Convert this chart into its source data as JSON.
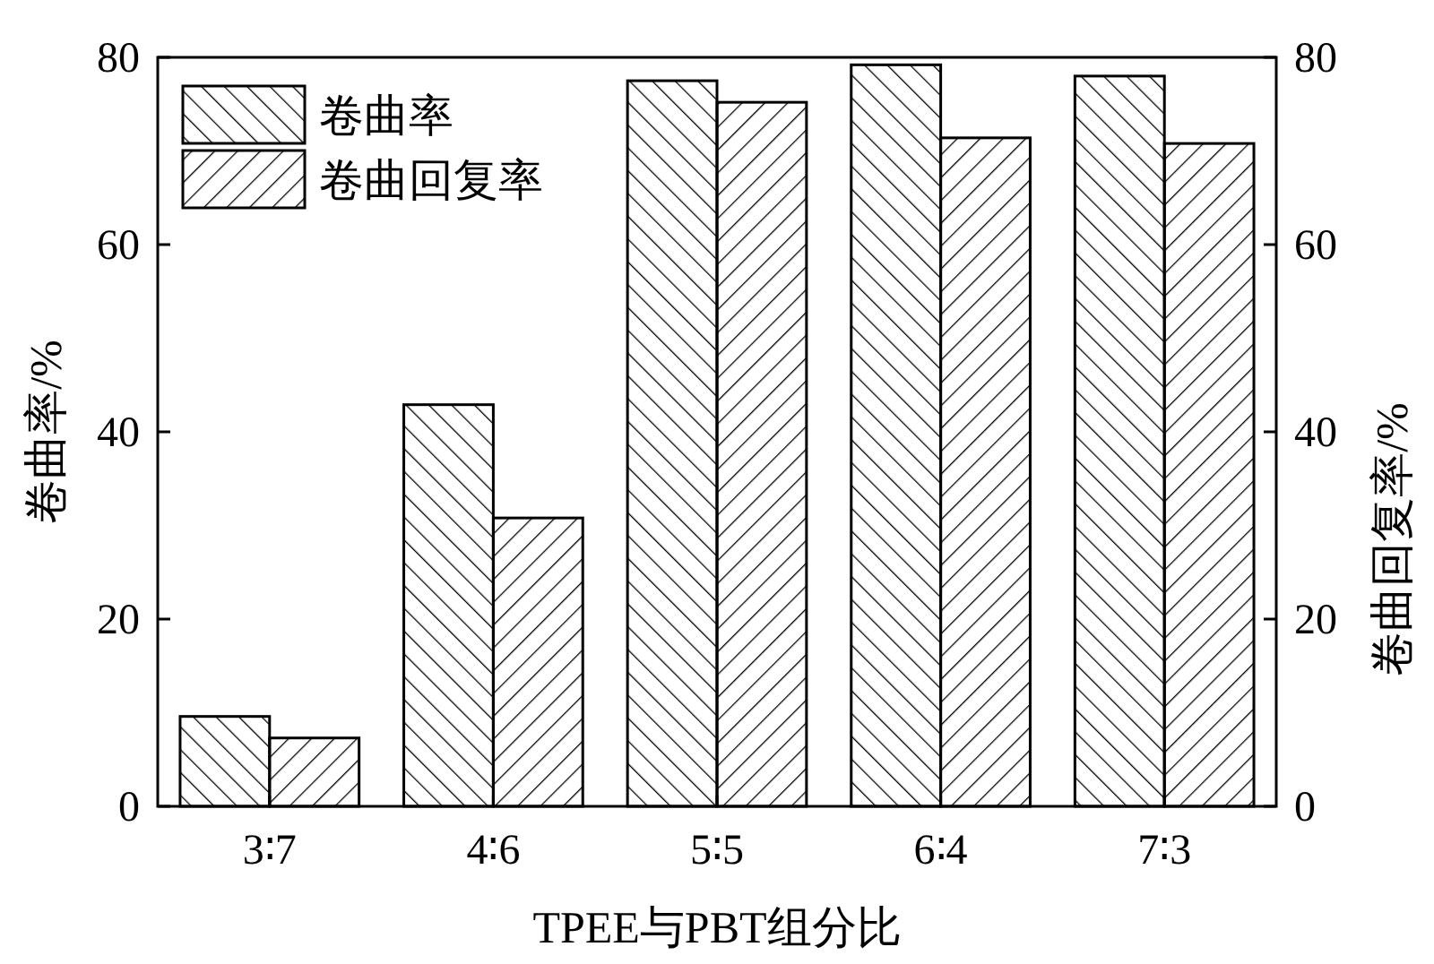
{
  "chart_data": {
    "type": "bar",
    "xlabel": "TPEE与PBT组分比",
    "ylabel": "卷曲率/%",
    "y2label": "卷曲回复率/%",
    "categories": [
      "3∶7",
      "4∶6",
      "5∶5",
      "6∶4",
      "7∶3"
    ],
    "series": [
      {
        "name": "卷曲率",
        "color": "#000000",
        "values": [
          9.6,
          42.9,
          77.5,
          79.2,
          78.0
        ]
      },
      {
        "name": "卷曲回复率",
        "color": "#000000",
        "axis": "y2",
        "values": [
          7.3,
          30.8,
          75.2,
          71.4,
          70.8
        ]
      }
    ],
    "ylim": [
      0,
      80
    ],
    "yticks": [
      0,
      20,
      40,
      60,
      80
    ],
    "y2lim": [
      0,
      80
    ],
    "y2ticks": [
      0,
      20,
      40,
      60,
      80
    ],
    "legend": "top left",
    "grid": false
  }
}
